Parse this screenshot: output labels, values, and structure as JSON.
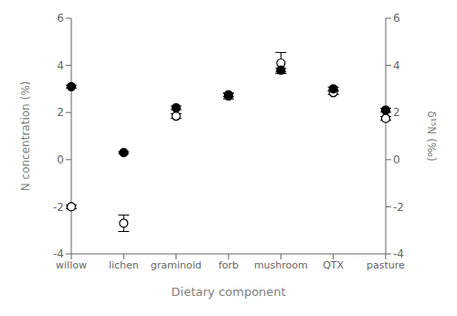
{
  "chart_data": {
    "type": "scatter",
    "categories": [
      "willow",
      "lichen",
      "graminoid",
      "forb",
      "mushroom",
      "QTX",
      "pasture"
    ],
    "series": [
      {
        "name": "δ¹⁵N (‰)",
        "color": "#000000",
        "marker": "open_circle",
        "values": [
          -2.0,
          -2.7,
          1.85,
          2.7,
          4.1,
          2.85,
          1.75
        ],
        "errors": [
          0.08,
          0.35,
          0.1,
          0.12,
          0.45,
          0.08,
          0.08
        ]
      },
      {
        "name": "N concentration (%)",
        "color": "#000000",
        "marker": "circle",
        "values": [
          3.1,
          0.3,
          2.2,
          2.75,
          3.8,
          3.0,
          2.1
        ],
        "errors": [
          0.06,
          0.04,
          0.08,
          0.07,
          0.08,
          0.08,
          0.08
        ]
      }
    ],
    "xlabel": "Dietary component",
    "ylabel": "N concentration (%)",
    "y2label": "δ¹⁵N (‰)",
    "ylim": [
      -4,
      6
    ],
    "yticks": [
      -4,
      -2,
      0,
      2,
      4,
      6
    ],
    "y2lim": [
      -4,
      6
    ],
    "y2ticks": [
      -4,
      -2,
      0,
      2,
      4,
      6
    ],
    "grid": false
  }
}
